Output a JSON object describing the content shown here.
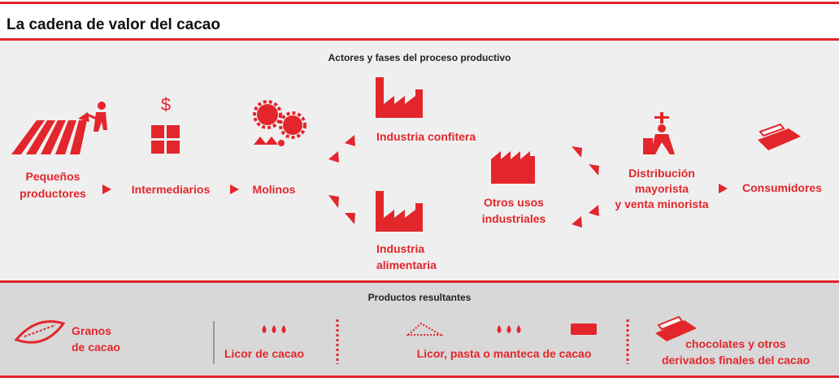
{
  "header": {
    "title": "La cadena de valor del cacao"
  },
  "actors": {
    "heading": "Actores y fases del proceso productivo",
    "nodes": [
      {
        "label_lines": [
          "Pequeños",
          "productores"
        ]
      },
      {
        "label_lines": [
          "Intermediarios"
        ]
      },
      {
        "label_lines": [
          "Molinos"
        ]
      },
      {
        "label_lines": [
          "Industria confitera"
        ]
      },
      {
        "label_lines": [
          "Industria",
          "alimentaria"
        ]
      },
      {
        "label_lines": [
          "Otros usos",
          "industriales"
        ]
      },
      {
        "label_lines": [
          "Distribución",
          "mayorista",
          "y venta minorista"
        ]
      },
      {
        "label_lines": [
          "Consumidores"
        ]
      }
    ]
  },
  "products": {
    "heading": "Productos resultantes",
    "items": [
      {
        "label_lines": [
          "Granos",
          "de cacao"
        ]
      },
      {
        "label_lines": [
          "Licor de cacao"
        ]
      },
      {
        "label_lines": [
          "Licor, pasta o manteca de cacao"
        ]
      },
      {
        "label_lines": [
          "chocolates y otros",
          "derivados finales del cacao"
        ]
      }
    ]
  }
}
